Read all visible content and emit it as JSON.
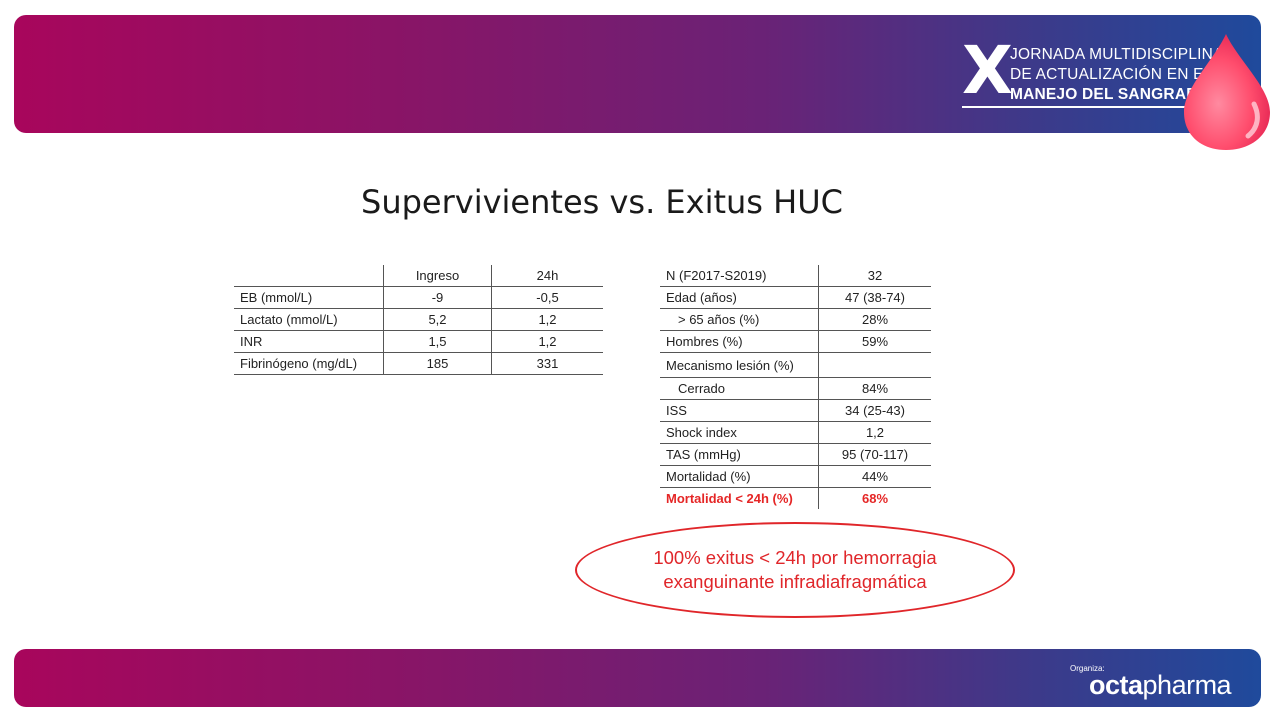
{
  "header": {
    "logo_numeral": "X",
    "logo_line1": "JORNADA MULTIDISCIPLINAR",
    "logo_line2": "DE ACTUALIZACIÓN EN EL",
    "logo_line3": "MANEJO DEL SANGRADO"
  },
  "slide": {
    "title": "Supervivientes vs. Exitus HUC",
    "left_table": {
      "headers": [
        "",
        "Ingreso",
        "24h"
      ],
      "rows": [
        [
          "EB (mmol/L)",
          "-9",
          "-0,5"
        ],
        [
          "Lactato (mmol/L)",
          "5,2",
          "1,2"
        ],
        [
          "INR",
          "1,5",
          "1,2"
        ],
        [
          "Fibrinógeno (mg/dL)",
          "185",
          "331"
        ]
      ]
    },
    "right_table": {
      "rows": [
        [
          "N (F2017-S2019)",
          "32"
        ],
        [
          "Edad (años)",
          "47 (38-74)"
        ],
        [
          "> 65 años (%)",
          "28%"
        ],
        [
          "Hombres (%)",
          "59%"
        ],
        [
          "Mecanismo lesión (%)",
          ""
        ],
        [
          "Cerrado",
          "84%"
        ],
        [
          "ISS",
          "34 (25-43)"
        ],
        [
          "Shock index",
          "1,2"
        ],
        [
          "TAS (mmHg)",
          "95 (70-117)"
        ],
        [
          "Mortalidad (%)",
          "44%"
        ],
        [
          "Mortalidad < 24h (%)",
          "68%"
        ]
      ]
    },
    "callout": {
      "line1": "100% exitus < 24h por hemorragia",
      "line2": "exanguinante infradiafragmática"
    }
  },
  "footer": {
    "organiza": "Organiza:",
    "brand_part1": "octa",
    "brand_part2": "pharma"
  },
  "colors": {
    "band_start": "#a8065c",
    "band_end": "#1f4a9c",
    "highlight_red": "#e52626",
    "drop_pink": "#ff4d6d"
  }
}
